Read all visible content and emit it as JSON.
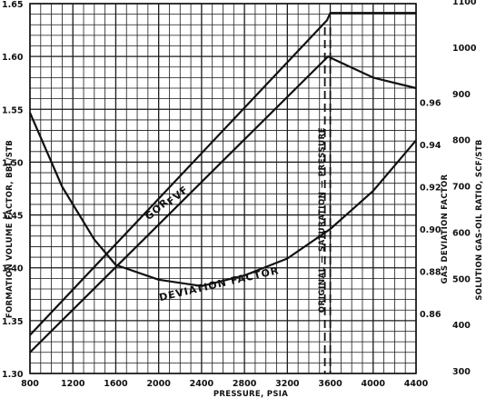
{
  "chart_data": {
    "type": "line",
    "xlabel": "PRESSURE, PSIA",
    "xlim": [
      800,
      4400
    ],
    "x_ticks": [
      "800",
      "1200",
      "1600",
      "2000",
      "2400",
      "2800",
      "3200",
      "3600",
      "4000",
      "4400"
    ],
    "y_left": {
      "label": "FORMATION VOLUME FACTOR, BBL/STB",
      "lim": [
        1.3,
        1.65
      ],
      "ticks": [
        "1.30",
        "1.35",
        "1.40",
        "1.45",
        "1.50",
        "1.55",
        "1.60",
        "1.65"
      ]
    },
    "y_right_gas": {
      "label": "GAS DEVIATION FACTOR",
      "ticks": [
        {
          "text": "0.86",
          "value": 0.86
        },
        {
          "text": "0.88",
          "value": 0.88
        },
        {
          "text": "0.90",
          "value": 0.9
        },
        {
          "text": "0.92",
          "value": 0.92
        },
        {
          "text": "0.94",
          "value": 0.94
        },
        {
          "text": "0.96",
          "value": 0.96
        }
      ]
    },
    "y_right_gor": {
      "label": "SOLUTION GAS-OIL RATIO, SCF/STB",
      "lim": [
        300,
        1100
      ],
      "ticks": [
        "300",
        "400",
        "500",
        "600",
        "700",
        "800",
        "900",
        "1000",
        "1100"
      ]
    },
    "grid": true,
    "series": [
      {
        "name": "GOR",
        "axis": "right_gor",
        "x": [
          800,
          3570,
          3600,
          4400
        ],
        "y": [
          383,
          1064,
          1080,
          1080
        ]
      },
      {
        "name": "FVF",
        "axis": "left",
        "x": [
          800,
          3580,
          3620,
          4000,
          4400
        ],
        "y": [
          1.32,
          1.6,
          1.598,
          1.58,
          1.57
        ]
      },
      {
        "name": "DEVIATION FACTOR",
        "axis": "right_gas",
        "x": [
          800,
          1100,
          1400,
          1600,
          2000,
          2400,
          2800,
          3200,
          3600,
          4000,
          4400
        ],
        "y": [
          0.955,
          0.92,
          0.895,
          0.883,
          0.876,
          0.873,
          0.878,
          0.886,
          0.9,
          0.918,
          0.942
        ]
      }
    ],
    "annotations": {
      "saturation": {
        "x": 3575,
        "text": "ORIGINAL — SATURATION — PRESSURE"
      }
    }
  }
}
